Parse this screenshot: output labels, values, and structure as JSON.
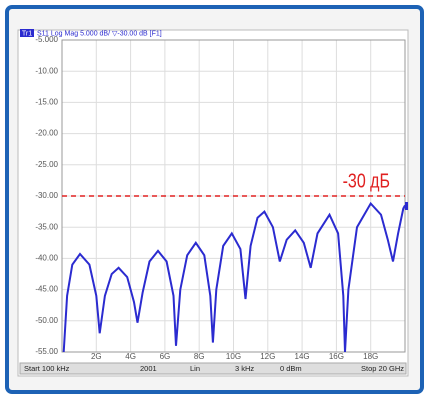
{
  "chart_data": {
    "type": "line",
    "trace_label": "Tr1",
    "header": "S11 Log Mag 5.000 dB/ ▽-30.00 dB [F1]",
    "x": [
      0.1,
      0.3,
      0.6,
      1.05,
      1.6,
      2.0,
      2.2,
      2.5,
      2.9,
      3.3,
      3.8,
      4.2,
      4.4,
      4.7,
      5.1,
      5.6,
      6.1,
      6.5,
      6.65,
      6.9,
      7.3,
      7.8,
      8.3,
      8.65,
      8.8,
      9.0,
      9.4,
      9.9,
      10.4,
      10.7,
      11.0,
      11.4,
      11.8,
      12.3,
      12.7,
      13.1,
      13.6,
      14.1,
      14.5,
      14.9,
      15.6,
      16.1,
      16.4,
      16.5,
      16.7,
      17.2,
      18.0,
      18.6,
      19.0,
      19.3,
      19.6,
      19.9,
      20
    ],
    "values": [
      -55,
      -46,
      -41,
      -39.3,
      -41,
      -46,
      -52,
      -46,
      -42.5,
      -41.5,
      -43,
      -47,
      -50.3,
      -45.5,
      -40.5,
      -38.8,
      -40.5,
      -46,
      -54,
      -45,
      -39.5,
      -37.5,
      -39.5,
      -46,
      -53.5,
      -45,
      -38,
      -36,
      -38.5,
      -46.5,
      -38,
      -33.5,
      -32.5,
      -35,
      -40.5,
      -37,
      -35.5,
      -37.5,
      -41.5,
      -36,
      -33,
      -36,
      -46,
      -55,
      -45,
      -35,
      -31.2,
      -33,
      -37,
      -40.5,
      -36,
      -32,
      -31.5
    ],
    "color": "#2b2bd0",
    "xlim": [
      0.0001,
      20
    ],
    "xticks": [
      {
        "value": 2,
        "label": "2G"
      },
      {
        "value": 4,
        "label": "4G"
      },
      {
        "value": 6,
        "label": "6G"
      },
      {
        "value": 8,
        "label": "8G"
      },
      {
        "value": 10,
        "label": "10G"
      },
      {
        "value": 12,
        "label": "12G"
      },
      {
        "value": 14,
        "label": "14G"
      },
      {
        "value": 16,
        "label": "16G"
      },
      {
        "value": 18,
        "label": "18G"
      }
    ],
    "ylim": [
      -55,
      -5
    ],
    "yticks": [
      {
        "value": -5,
        "label": "-5.000"
      },
      {
        "value": -10,
        "label": "-10.00"
      },
      {
        "value": -15,
        "label": "-15.00"
      },
      {
        "value": -20,
        "label": "-20.00"
      },
      {
        "value": -25,
        "label": "-25.00"
      },
      {
        "value": -30,
        "label": "-30.00"
      },
      {
        "value": -35,
        "label": "-35.00"
      },
      {
        "value": -40,
        "label": "-40.00"
      },
      {
        "value": -45,
        "label": "-45.00"
      },
      {
        "value": -50,
        "label": "-50.00"
      },
      {
        "value": -55,
        "label": "-55.00"
      }
    ],
    "grid": true,
    "reference_line": {
      "value": -30,
      "color": "#e02020",
      "label": "-30 дБ"
    },
    "footer": [
      "Start 100 kHz",
      "2001",
      "Lin",
      "3 kHz",
      "0 dBm",
      "Stop 20 GHz"
    ]
  }
}
